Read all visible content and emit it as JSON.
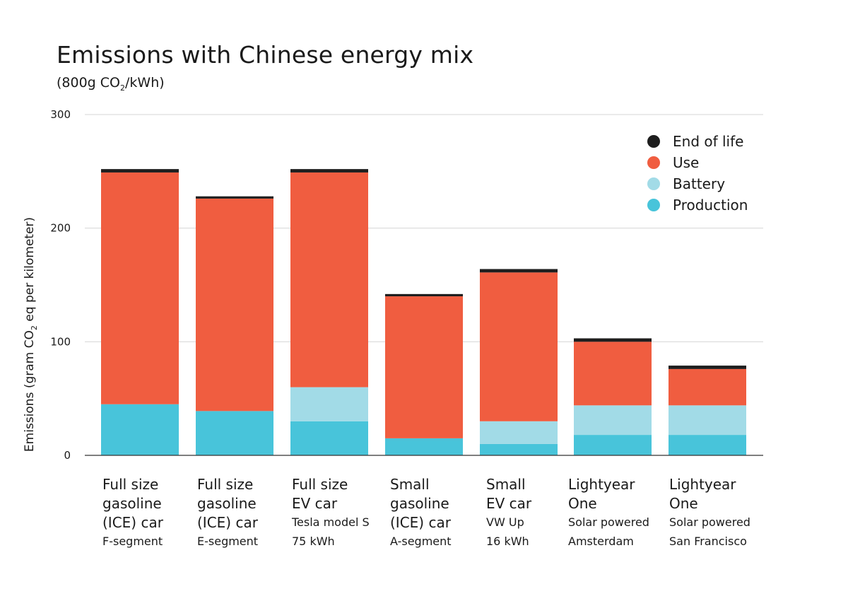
{
  "header": {
    "title": "Emissions with Chinese energy mix",
    "subtitle_prefix": "(800g CO",
    "subtitle_sub": "2",
    "subtitle_suffix": "/kWh)"
  },
  "colors": {
    "end_of_life": "#1e1e1e",
    "use": "#f05d40",
    "battery": "#a2dbe7",
    "production": "#48c4da",
    "grid": "#d6d6d6",
    "axis": "#333333"
  },
  "chart_data": {
    "type": "bar",
    "stacked": true,
    "title": "Emissions with Chinese energy mix",
    "subtitle": "(800g CO2/kWh)",
    "xlabel": "",
    "ylabel": "Emissions (gram CO2 eq per kilometer)",
    "ylabel_parts": [
      "Emissions (gram CO",
      "2",
      " eq per kilometer)"
    ],
    "ylim": [
      0,
      300
    ],
    "yticks": [
      0,
      100,
      200,
      300
    ],
    "grid": true,
    "legend_position": "top-right",
    "categories": [
      {
        "lines": [
          "Full size",
          "gasoline",
          "(ICE) car"
        ],
        "sub": [
          "F-segment"
        ]
      },
      {
        "lines": [
          "Full size",
          "gasoline",
          "(ICE) car"
        ],
        "sub": [
          "E-segment"
        ]
      },
      {
        "lines": [
          "Full size",
          "EV car"
        ],
        "sub": [
          "Tesla model S",
          "75 kWh"
        ]
      },
      {
        "lines": [
          "Small",
          "gasoline",
          "(ICE) car"
        ],
        "sub": [
          "A-segment"
        ]
      },
      {
        "lines": [
          "Small",
          "EV car"
        ],
        "sub": [
          "VW Up",
          "16 kWh"
        ]
      },
      {
        "lines": [
          "Lightyear",
          "One"
        ],
        "sub": [
          "Solar powered",
          "Amsterdam"
        ]
      },
      {
        "lines": [
          "Lightyear",
          "One"
        ],
        "sub": [
          "Solar powered",
          "San Francisco"
        ]
      }
    ],
    "series": [
      {
        "name": "Production",
        "key": "production",
        "values": [
          45,
          39,
          30,
          15,
          10,
          18,
          18
        ]
      },
      {
        "name": "Battery",
        "key": "battery",
        "values": [
          0,
          0,
          30,
          0,
          20,
          26,
          26
        ]
      },
      {
        "name": "Use",
        "key": "use",
        "values": [
          204,
          187,
          189,
          125,
          131,
          56,
          32
        ]
      },
      {
        "name": "End of life",
        "key": "end_of_life",
        "values": [
          3,
          2,
          3,
          2,
          3,
          3,
          3
        ]
      }
    ],
    "legend": [
      "End of life",
      "Use",
      "Battery",
      "Production"
    ]
  }
}
